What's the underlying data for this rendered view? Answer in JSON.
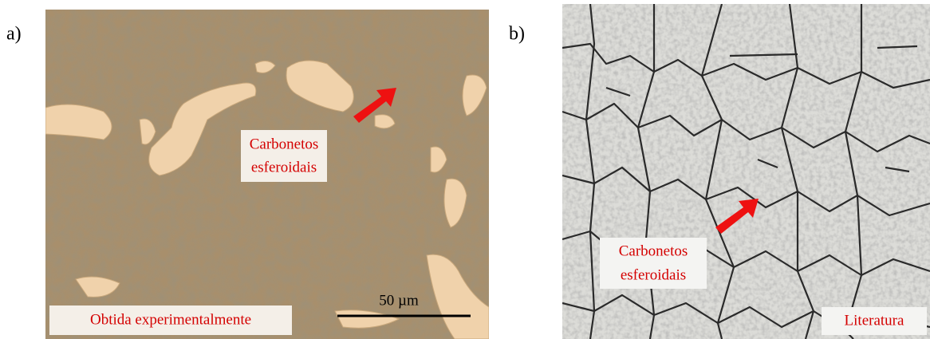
{
  "panels": [
    {
      "label": "a)",
      "annotation": [
        "Carbonetos",
        "esferoidais"
      ],
      "caption": "Obtida experimentalmente",
      "scale_bar": "50 µm"
    },
    {
      "label": "b)",
      "annotation": [
        "Carbonetos",
        "esferoidais"
      ],
      "caption": "Literatura"
    }
  ]
}
